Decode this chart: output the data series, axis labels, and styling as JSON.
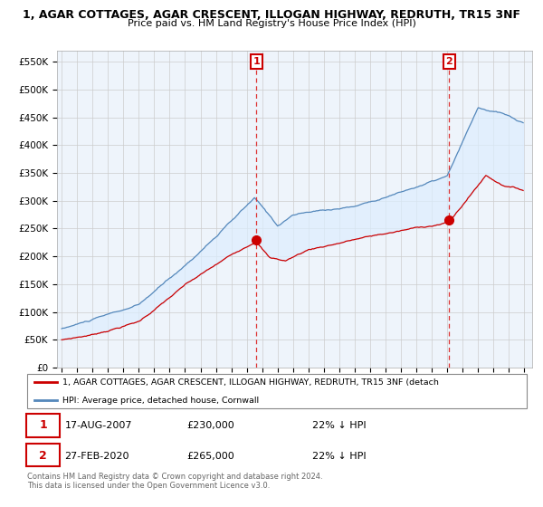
{
  "title1": "1, AGAR COTTAGES, AGAR CRESCENT, ILLOGAN HIGHWAY, REDRUTH, TR15 3NF",
  "title2": "Price paid vs. HM Land Registry's House Price Index (HPI)",
  "ylabel_ticks": [
    "£0",
    "£50K",
    "£100K",
    "£150K",
    "£200K",
    "£250K",
    "£300K",
    "£350K",
    "£400K",
    "£450K",
    "£500K",
    "£550K"
  ],
  "ytick_vals": [
    0,
    50000,
    100000,
    150000,
    200000,
    250000,
    300000,
    350000,
    400000,
    450000,
    500000,
    550000
  ],
  "ylim": [
    0,
    570000
  ],
  "xlim_start": 1994.7,
  "xlim_end": 2025.5,
  "sale1_year": 2007.63,
  "sale1_price": 230000,
  "sale1_date": "17-AUG-2007",
  "sale1_pct": "22% ↓ HPI",
  "sale2_year": 2020.12,
  "sale2_price": 265000,
  "sale2_date": "27-FEB-2020",
  "sale2_pct": "22% ↓ HPI",
  "legend_label1": "1, AGAR COTTAGES, AGAR CRESCENT, ILLOGAN HIGHWAY, REDRUTH, TR15 3NF (detach",
  "legend_label2": "HPI: Average price, detached house, Cornwall",
  "footer1": "Contains HM Land Registry data © Crown copyright and database right 2024.",
  "footer2": "This data is licensed under the Open Government Licence v3.0.",
  "red_color": "#cc0000",
  "blue_color": "#5588bb",
  "fill_color": "#ddeeff",
  "vline_color": "#dd3333",
  "background_color": "#ffffff",
  "plot_bg_color": "#eef4fb",
  "grid_color": "#cccccc"
}
